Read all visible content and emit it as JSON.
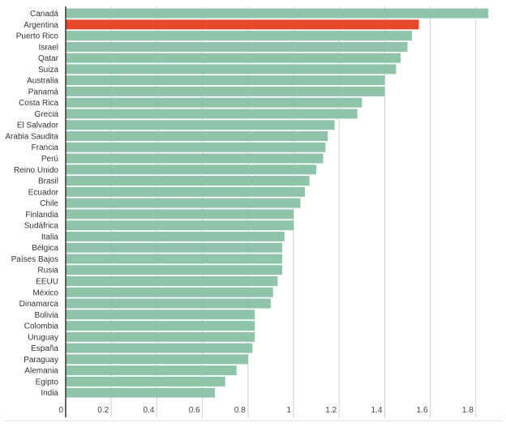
{
  "chart_data": {
    "type": "bar",
    "orientation": "horizontal",
    "title": "",
    "xlabel": "",
    "ylabel": "",
    "xlim": [
      0,
      1.86
    ],
    "x_ticks": [
      "0",
      "0.2",
      "0.4",
      "0.6",
      "0.8",
      "1",
      "1.2",
      "1.4",
      "1.6",
      "1.8"
    ],
    "grid": true,
    "colors": {
      "default": "#8fc4aa",
      "highlight": "#e8492a"
    },
    "highlight": "Argentina",
    "categories": [
      "Canadá",
      "Argentina",
      "Puerto Rico",
      "Israel",
      "Qatar",
      "Suiza",
      "Australia",
      "Panamá",
      "Costa Rica",
      "Grecia",
      "El Salvador",
      "Arabia Saudita",
      "Francia",
      "Perú",
      "Reino Unido",
      "Brasil",
      "Ecuador",
      "Chile",
      "Finlandia",
      "Sudáfrica",
      "Italia",
      "Bélgica",
      "Países Bajos",
      "Rusia",
      "EEUU",
      "México",
      "Dinamarca",
      "Bolivia",
      "Colombia",
      "Uruguay",
      "España",
      "Paraguay",
      "Alemania",
      "Egipto",
      "India"
    ],
    "values": [
      1.855,
      1.55,
      1.52,
      1.5,
      1.47,
      1.45,
      1.4,
      1.4,
      1.3,
      1.28,
      1.18,
      1.15,
      1.14,
      1.13,
      1.1,
      1.07,
      1.05,
      1.03,
      1.0,
      1.0,
      0.96,
      0.95,
      0.95,
      0.95,
      0.93,
      0.91,
      0.9,
      0.83,
      0.83,
      0.83,
      0.82,
      0.8,
      0.75,
      0.7,
      0.655
    ]
  }
}
